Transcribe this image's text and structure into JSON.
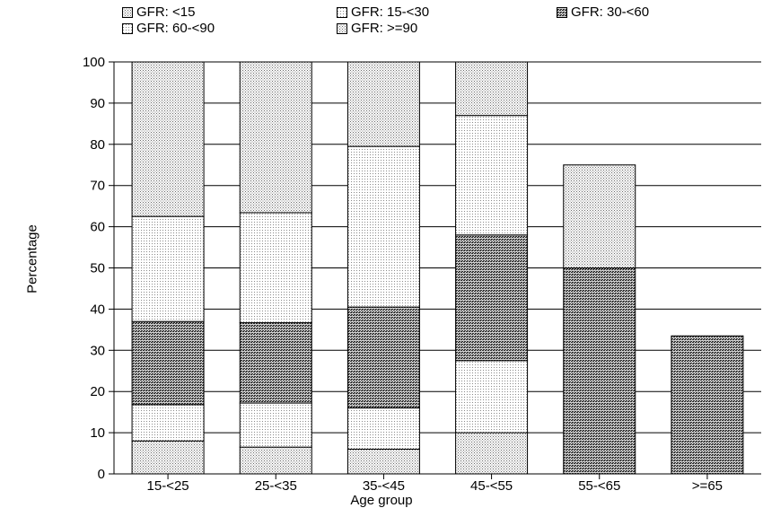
{
  "chart_data": {
    "type": "bar",
    "stacked": true,
    "categories": [
      "15-<25",
      "25-<35",
      "35-<45",
      "45-<55",
      "55-<65",
      ">=65"
    ],
    "series": [
      {
        "name": "GFR: <15",
        "values": [
          8,
          6.5,
          6,
          10,
          0,
          0
        ]
      },
      {
        "name": "GFR: 15-<30",
        "values": [
          8.8,
          10.7,
          10,
          17.5,
          0,
          0
        ]
      },
      {
        "name": "GFR: 30-<60",
        "values": [
          20.2,
          19.5,
          24.5,
          30.5,
          50,
          33.5
        ]
      },
      {
        "name": "GFR: 60-<90",
        "values": [
          25.5,
          26.7,
          39,
          29,
          0,
          0
        ]
      },
      {
        "name": "GFR: >=90",
        "values": [
          37.5,
          36.6,
          20.5,
          13,
          25,
          0
        ]
      }
    ],
    "yticks": [
      0,
      10,
      20,
      30,
      40,
      50,
      60,
      70,
      80,
      90,
      100
    ],
    "ylim": [
      0,
      100
    ],
    "ylabel": "Percentage",
    "xlabel": "Age group",
    "grid": true,
    "legend_position": "top"
  },
  "colors": {
    "background": "#ffffff",
    "axis": "#000000",
    "light_dots": "#9a9a9a",
    "dark_pattern": "#3a3a3a"
  }
}
